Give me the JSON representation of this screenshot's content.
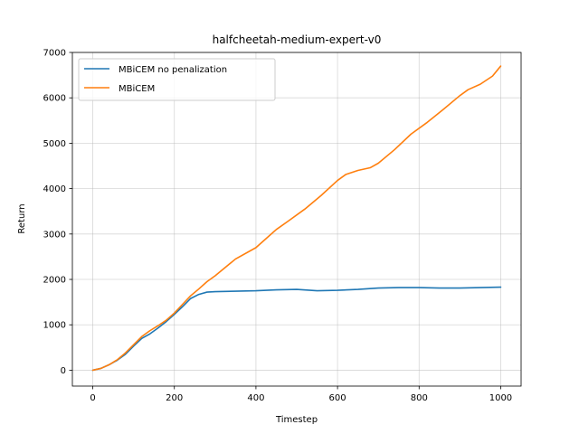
{
  "chart_data": {
    "type": "line",
    "title": "halfcheetah-medium-expert-v0",
    "xlabel": "Timestep",
    "ylabel": "Return",
    "xlim": [
      -50,
      1050
    ],
    "ylim": [
      -350,
      7000
    ],
    "xticks": [
      0,
      200,
      400,
      600,
      800,
      1000
    ],
    "yticks": [
      0,
      1000,
      2000,
      3000,
      4000,
      5000,
      6000,
      7000
    ],
    "grid": true,
    "legend_position": "top-left",
    "series": [
      {
        "name": "MBiCEM no penalization",
        "color": "#1f77b4",
        "x": [
          0,
          20,
          40,
          60,
          80,
          100,
          120,
          140,
          160,
          180,
          200,
          220,
          240,
          260,
          280,
          300,
          350,
          400,
          450,
          500,
          550,
          600,
          650,
          700,
          750,
          800,
          850,
          900,
          950,
          1000
        ],
        "y": [
          0,
          40,
          120,
          220,
          350,
          530,
          700,
          800,
          930,
          1070,
          1230,
          1400,
          1580,
          1670,
          1720,
          1730,
          1740,
          1750,
          1770,
          1780,
          1750,
          1760,
          1780,
          1810,
          1820,
          1820,
          1810,
          1810,
          1820,
          1830
        ]
      },
      {
        "name": "MBiCEM",
        "color": "#ff7f0e",
        "x": [
          0,
          20,
          40,
          60,
          80,
          100,
          120,
          140,
          160,
          180,
          200,
          220,
          240,
          260,
          280,
          300,
          350,
          400,
          450,
          480,
          520,
          560,
          600,
          620,
          650,
          680,
          700,
          740,
          780,
          820,
          860,
          900,
          920,
          950,
          980,
          1000
        ],
        "y": [
          0,
          40,
          120,
          230,
          380,
          560,
          740,
          870,
          980,
          1100,
          1260,
          1450,
          1640,
          1790,
          1950,
          2080,
          2450,
          2700,
          3100,
          3290,
          3550,
          3850,
          4180,
          4310,
          4400,
          4460,
          4560,
          4860,
          5200,
          5460,
          5750,
          6050,
          6180,
          6300,
          6480,
          6700
        ]
      }
    ]
  }
}
